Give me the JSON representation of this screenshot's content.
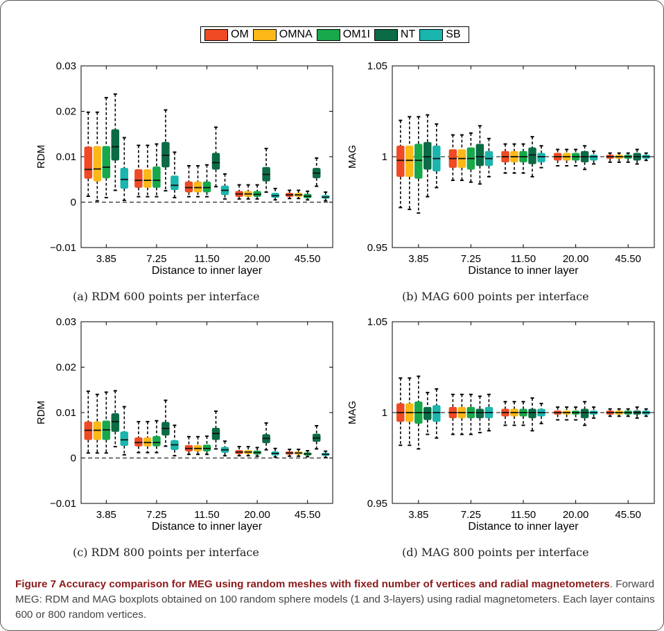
{
  "figure": {
    "caption_title": "Figure 7 Accuracy comparison for MEG using random meshes with fixed number of vertices and radial magnetometers",
    "caption_text": ". Forward MEG: RDM and MAG boxplots obtained on 100 random sphere models (1 and 3-layers) using radial magnetometers. Each layer contains 600 or 800 random vertices."
  },
  "legend": [
    {
      "label": "OM",
      "color": "#ef4a23"
    },
    {
      "label": "OMNA",
      "color": "#fbb817"
    },
    {
      "label": "OM1I",
      "color": "#16a84a"
    },
    {
      "label": "NT",
      "color": "#0b6b45"
    },
    {
      "label": "SB",
      "color": "#1ab5ad"
    }
  ],
  "chart_data": [
    {
      "type": "box",
      "caption": "(a) RDM 600 points per interface",
      "xlabel": "Distance to inner layer",
      "ylabel": "RDM",
      "ylim": [
        -0.01,
        0.03
      ],
      "yticks": [
        "0.03",
        "0.02",
        "0.01",
        "0",
        "−0.01"
      ],
      "ytick_values": [
        0.03,
        0.02,
        0.01,
        0,
        -0.01
      ],
      "categories": [
        "3.85",
        "7.25",
        "11.50",
        "20.00",
        "45.50"
      ],
      "reference_line": 0,
      "series": [
        {
          "name": "OM",
          "boxes": [
            [
              0.0013,
              0.0052,
              0.0072,
              0.0122,
              0.0198
            ],
            [
              0.0012,
              0.0032,
              0.0048,
              0.0072,
              0.0125
            ],
            [
              0.0012,
              0.0022,
              0.0032,
              0.0045,
              0.008
            ],
            [
              0.0007,
              0.0012,
              0.0018,
              0.0024,
              0.0038
            ],
            [
              0.0008,
              0.0012,
              0.0016,
              0.002,
              0.0026
            ]
          ]
        },
        {
          "name": "OMNA",
          "boxes": [
            [
              0.0003,
              0.0046,
              0.0073,
              0.0123,
              0.0198
            ],
            [
              0.0012,
              0.0032,
              0.0048,
              0.0072,
              0.0125
            ],
            [
              0.0012,
              0.0022,
              0.0032,
              0.0045,
              0.008
            ],
            [
              0.0007,
              0.0012,
              0.0018,
              0.0024,
              0.0038
            ],
            [
              0.0008,
              0.0012,
              0.0016,
              0.002,
              0.0026
            ]
          ]
        },
        {
          "name": "OM1I",
          "boxes": [
            [
              0.001,
              0.0053,
              0.0077,
              0.0123,
              0.023
            ],
            [
              0.0012,
              0.0032,
              0.0048,
              0.0078,
              0.0128
            ],
            [
              0.0012,
              0.0022,
              0.0032,
              0.0045,
              0.0082
            ],
            [
              0.0007,
              0.0012,
              0.0017,
              0.0024,
              0.0038
            ],
            [
              0.0005,
              0.0009,
              0.0013,
              0.0018,
              0.0024
            ]
          ]
        },
        {
          "name": "NT",
          "boxes": [
            [
              0.0026,
              0.0092,
              0.0122,
              0.016,
              0.0238
            ],
            [
              0.0025,
              0.0077,
              0.0103,
              0.0132,
              0.0203
            ],
            [
              0.0034,
              0.0072,
              0.0087,
              0.0108,
              0.0165
            ],
            [
              0.0022,
              0.0046,
              0.0061,
              0.0077,
              0.0118
            ],
            [
              0.0035,
              0.0053,
              0.0064,
              0.0075,
              0.0097
            ]
          ]
        },
        {
          "name": "SB",
          "boxes": [
            [
              0.0004,
              0.003,
              0.005,
              0.0075,
              0.0142
            ],
            [
              0.001,
              0.0027,
              0.0037,
              0.0058,
              0.011
            ],
            [
              0.0007,
              0.0016,
              0.0026,
              0.0036,
              0.0062
            ],
            [
              0.0005,
              0.001,
              0.0014,
              0.002,
              0.003
            ],
            [
              0.0003,
              0.0008,
              0.0011,
              0.0015,
              0.0022
            ]
          ]
        }
      ]
    },
    {
      "type": "box",
      "caption": "(b) MAG 600 points per interface",
      "xlabel": "Distance to inner layer",
      "ylabel": "MAG",
      "ylim": [
        0.95,
        1.05
      ],
      "yticks": [
        "1.05",
        "1",
        "0.95"
      ],
      "ytick_values": [
        1.05,
        1,
        0.95
      ],
      "categories": [
        "3.85",
        "7.25",
        "11.50",
        "20.00",
        "45.50"
      ],
      "reference_line": 1,
      "series": [
        {
          "name": "OM",
          "boxes": [
            [
              0.972,
              0.989,
              0.998,
              1.006,
              1.02
            ],
            [
              0.987,
              0.994,
              0.999,
              1.004,
              1.012
            ],
            [
              0.991,
              0.997,
              1.0,
              1.003,
              1.007
            ],
            [
              0.995,
              0.998,
              1.0,
              1.002,
              1.004
            ],
            [
              0.997,
              0.999,
              1.0,
              1.001,
              1.002
            ]
          ]
        },
        {
          "name": "OMNA",
          "boxes": [
            [
              0.971,
              0.989,
              0.998,
              1.006,
              1.022
            ],
            [
              0.987,
              0.994,
              0.999,
              1.004,
              1.012
            ],
            [
              0.991,
              0.997,
              1.0,
              1.003,
              1.007
            ],
            [
              0.995,
              0.998,
              1.0,
              1.002,
              1.004
            ],
            [
              0.997,
              0.999,
              1.0,
              1.001,
              1.002
            ]
          ]
        },
        {
          "name": "OM1I",
          "boxes": [
            [
              0.969,
              0.988,
              0.998,
              1.007,
              1.022
            ],
            [
              0.986,
              0.993,
              0.999,
              1.005,
              1.013
            ],
            [
              0.991,
              0.997,
              1.0,
              1.003,
              1.007
            ],
            [
              0.995,
              0.998,
              1.0,
              1.002,
              1.004
            ],
            [
              0.997,
              0.999,
              1.0,
              1.001,
              1.002
            ]
          ]
        },
        {
          "name": "NT",
          "boxes": [
            [
              0.978,
              0.993,
              1.0,
              1.008,
              1.023
            ],
            [
              0.985,
              0.995,
              1.0,
              1.007,
              1.017
            ],
            [
              0.989,
              0.996,
              1.001,
              1.005,
              1.011
            ],
            [
              0.993,
              0.997,
              1.0,
              1.003,
              1.006
            ],
            [
              0.996,
              0.998,
              1.0,
              1.002,
              1.004
            ]
          ]
        },
        {
          "name": "SB",
          "boxes": [
            [
              0.983,
              0.992,
              0.999,
              1.006,
              1.018
            ],
            [
              0.989,
              0.995,
              0.999,
              1.003,
              1.01
            ],
            [
              0.994,
              0.997,
              1.0,
              1.002,
              1.006
            ],
            [
              0.996,
              0.998,
              1.0,
              1.001,
              1.003
            ],
            [
              0.998,
              0.999,
              1.0,
              1.001,
              1.002
            ]
          ]
        }
      ]
    },
    {
      "type": "box",
      "caption": "(c) RDM 800 points per interface",
      "xlabel": "Distance to inner layer",
      "ylabel": "RDM",
      "ylim": [
        -0.01,
        0.03
      ],
      "yticks": [
        "0.03",
        "0.02",
        "0.01",
        "0",
        "−0.01"
      ],
      "ytick_values": [
        0.03,
        0.02,
        0.01,
        0,
        -0.01
      ],
      "categories": [
        "3.85",
        "7.25",
        "11.50",
        "20.00",
        "45.50"
      ],
      "reference_line": 0,
      "series": [
        {
          "name": "OM",
          "boxes": [
            [
              0.0011,
              0.004,
              0.0061,
              0.008,
              0.0147
            ],
            [
              0.0012,
              0.0026,
              0.0034,
              0.0045,
              0.008
            ],
            [
              0.0008,
              0.0015,
              0.0021,
              0.0028,
              0.0047
            ],
            [
              0.0005,
              0.0009,
              0.0013,
              0.0017,
              0.0025
            ],
            [
              0.0004,
              0.0008,
              0.0011,
              0.0014,
              0.0019
            ]
          ]
        },
        {
          "name": "OMNA",
          "boxes": [
            [
              0.0011,
              0.004,
              0.0061,
              0.008,
              0.014
            ],
            [
              0.0012,
              0.0026,
              0.0034,
              0.0045,
              0.008
            ],
            [
              0.0008,
              0.0015,
              0.0021,
              0.0028,
              0.0047
            ],
            [
              0.0005,
              0.0009,
              0.0013,
              0.0017,
              0.0025
            ],
            [
              0.0004,
              0.0008,
              0.0011,
              0.0014,
              0.0019
            ]
          ]
        },
        {
          "name": "OM1I",
          "boxes": [
            [
              0.0011,
              0.004,
              0.0062,
              0.0082,
              0.0145
            ],
            [
              0.0012,
              0.0026,
              0.0034,
              0.0048,
              0.0082
            ],
            [
              0.0008,
              0.0015,
              0.0021,
              0.0029,
              0.0048
            ],
            [
              0.0004,
              0.0008,
              0.0012,
              0.0016,
              0.0023
            ],
            [
              0.0003,
              0.0006,
              0.0009,
              0.0012,
              0.0016
            ]
          ]
        },
        {
          "name": "NT",
          "boxes": [
            [
              0.0025,
              0.0058,
              0.008,
              0.0098,
              0.0148
            ],
            [
              0.0026,
              0.005,
              0.0065,
              0.0079,
              0.0127
            ],
            [
              0.002,
              0.004,
              0.0054,
              0.0066,
              0.0103
            ],
            [
              0.0018,
              0.0033,
              0.0043,
              0.0052,
              0.0077
            ],
            [
              0.002,
              0.0036,
              0.0044,
              0.0053,
              0.0071
            ]
          ]
        },
        {
          "name": "SB",
          "boxes": [
            [
              0.0007,
              0.0027,
              0.004,
              0.0058,
              0.0113
            ],
            [
              0.0005,
              0.0018,
              0.0029,
              0.0039,
              0.0072
            ],
            [
              0.0005,
              0.0012,
              0.0018,
              0.0024,
              0.0037
            ],
            [
              0.0002,
              0.0006,
              0.001,
              0.0014,
              0.0021
            ],
            [
              0.0001,
              0.0005,
              0.0008,
              0.0011,
              0.0015
            ]
          ]
        }
      ]
    },
    {
      "type": "box",
      "caption": "(d) MAG 800 points per interface",
      "xlabel": "Distance to inner layer",
      "ylabel": "MAG",
      "ylim": [
        0.95,
        1.05
      ],
      "yticks": [
        "1.05",
        "1",
        "0.95"
      ],
      "ytick_values": [
        1.05,
        1,
        0.95
      ],
      "categories": [
        "3.85",
        "7.25",
        "11.50",
        "20.00",
        "45.50"
      ],
      "reference_line": 1,
      "series": [
        {
          "name": "OM",
          "boxes": [
            [
              0.982,
              0.995,
              1.0,
              1.005,
              1.019
            ],
            [
              0.988,
              0.997,
              1.0,
              1.003,
              1.01
            ],
            [
              0.993,
              0.998,
              1.0,
              1.002,
              1.006
            ],
            [
              0.996,
              0.999,
              1.0,
              1.001,
              1.003
            ],
            [
              0.998,
              0.999,
              1.0,
              1.001,
              1.002
            ]
          ]
        },
        {
          "name": "OMNA",
          "boxes": [
            [
              0.982,
              0.995,
              1.0,
              1.005,
              1.019
            ],
            [
              0.988,
              0.997,
              1.0,
              1.003,
              1.01
            ],
            [
              0.993,
              0.998,
              1.0,
              1.002,
              1.006
            ],
            [
              0.996,
              0.999,
              1.0,
              1.001,
              1.003
            ],
            [
              0.998,
              0.999,
              1.0,
              1.001,
              1.002
            ]
          ]
        },
        {
          "name": "OM1I",
          "boxes": [
            [
              0.98,
              0.994,
              1.0,
              1.006,
              1.02
            ],
            [
              0.988,
              0.997,
              1.0,
              1.003,
              1.01
            ],
            [
              0.993,
              0.998,
              1.0,
              1.002,
              1.006
            ],
            [
              0.996,
              0.999,
              1.0,
              1.001,
              1.003
            ],
            [
              0.998,
              0.999,
              1.0,
              1.001,
              1.002
            ]
          ]
        },
        {
          "name": "NT",
          "boxes": [
            [
              0.988,
              0.996,
              1.0,
              1.003,
              1.011
            ],
            [
              0.989,
              0.997,
              1.0,
              1.002,
              1.009
            ],
            [
              0.99,
              0.997,
              1.0,
              1.002,
              1.008
            ],
            [
              0.993,
              0.997,
              1.0,
              1.002,
              1.006
            ],
            [
              0.997,
              0.999,
              1.0,
              1.001,
              1.003
            ]
          ]
        },
        {
          "name": "SB",
          "boxes": [
            [
              0.986,
              0.995,
              1.0,
              1.004,
              1.013
            ],
            [
              0.99,
              0.997,
              1.0,
              1.003,
              1.01
            ],
            [
              0.994,
              0.998,
              1.0,
              1.002,
              1.005
            ],
            [
              0.997,
              0.999,
              1.0,
              1.001,
              1.003
            ],
            [
              0.998,
              0.999,
              1.0,
              1.001,
              1.002
            ]
          ]
        }
      ]
    }
  ]
}
